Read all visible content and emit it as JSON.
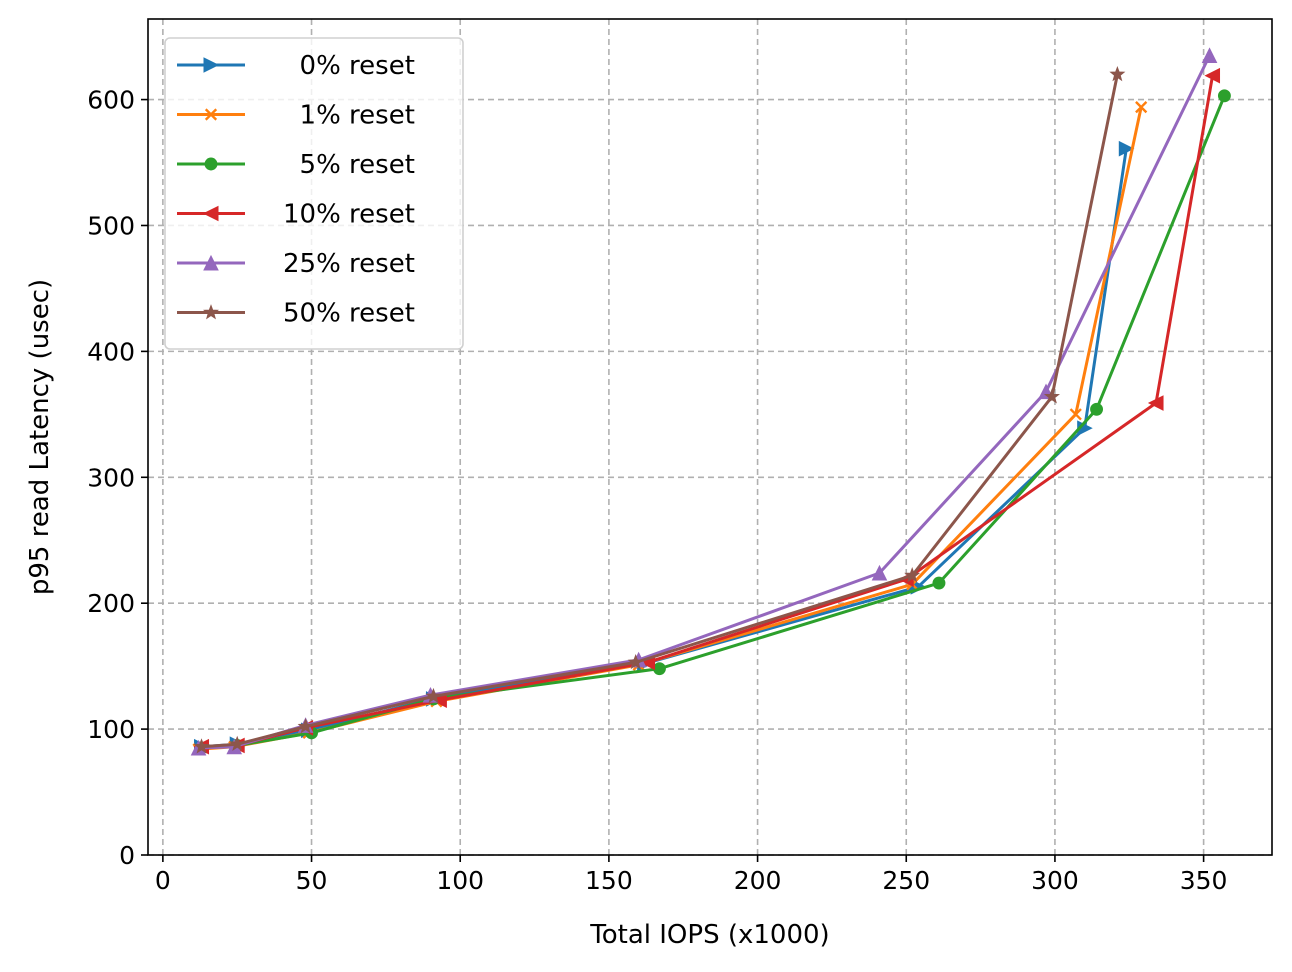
{
  "chart_data": {
    "type": "line",
    "title": "",
    "xlabel": "Total IOPS (x1000)",
    "ylabel": "p95 read Latency (usec)",
    "xlim": [
      -5,
      373
    ],
    "ylim": [
      0,
      664
    ],
    "xticks": [
      0,
      50,
      100,
      150,
      200,
      250,
      300,
      350
    ],
    "yticks": [
      0,
      100,
      200,
      300,
      400,
      500,
      600
    ],
    "grid": true,
    "grid_style": "dashed",
    "legend_position": "top-left",
    "series": [
      {
        "name": "  0% reset",
        "color": "#1f77b4",
        "marker": "triangle-right",
        "x": [
          13,
          25,
          49,
          91,
          162,
          254,
          310,
          324
        ],
        "y": [
          86,
          88,
          99,
          124,
          152,
          213,
          339,
          561
        ]
      },
      {
        "name": "  1% reset",
        "color": "#ff7f0e",
        "marker": "x",
        "x": [
          12,
          24,
          49,
          92,
          160,
          252,
          307,
          329
        ],
        "y": [
          84,
          86,
          97,
          122,
          151,
          215,
          350,
          594
        ]
      },
      {
        "name": "  5% reset",
        "color": "#2ca02c",
        "marker": "circle",
        "x": [
          13,
          25,
          50,
          91,
          167,
          261,
          314,
          357
        ],
        "y": [
          85,
          87,
          97,
          124,
          148,
          216,
          354,
          603
        ]
      },
      {
        "name": "10% reset",
        "color": "#d62728",
        "marker": "triangle-left",
        "x": [
          13,
          25,
          48,
          93,
          163,
          250,
          334,
          353
        ],
        "y": [
          86,
          87,
          101,
          123,
          153,
          219,
          359,
          619
        ]
      },
      {
        "name": "25% reset",
        "color": "#9467bd",
        "marker": "triangle-up",
        "x": [
          12,
          24,
          48,
          90,
          160,
          241,
          297,
          352
        ],
        "y": [
          85,
          86,
          103,
          127,
          155,
          224,
          368,
          635
        ]
      },
      {
        "name": "50% reset",
        "color": "#8c564b",
        "marker": "star",
        "x": [
          13,
          25,
          48,
          91,
          159,
          252,
          299,
          321
        ],
        "y": [
          86,
          88,
          102,
          126,
          153,
          222,
          364,
          620
        ]
      }
    ]
  }
}
